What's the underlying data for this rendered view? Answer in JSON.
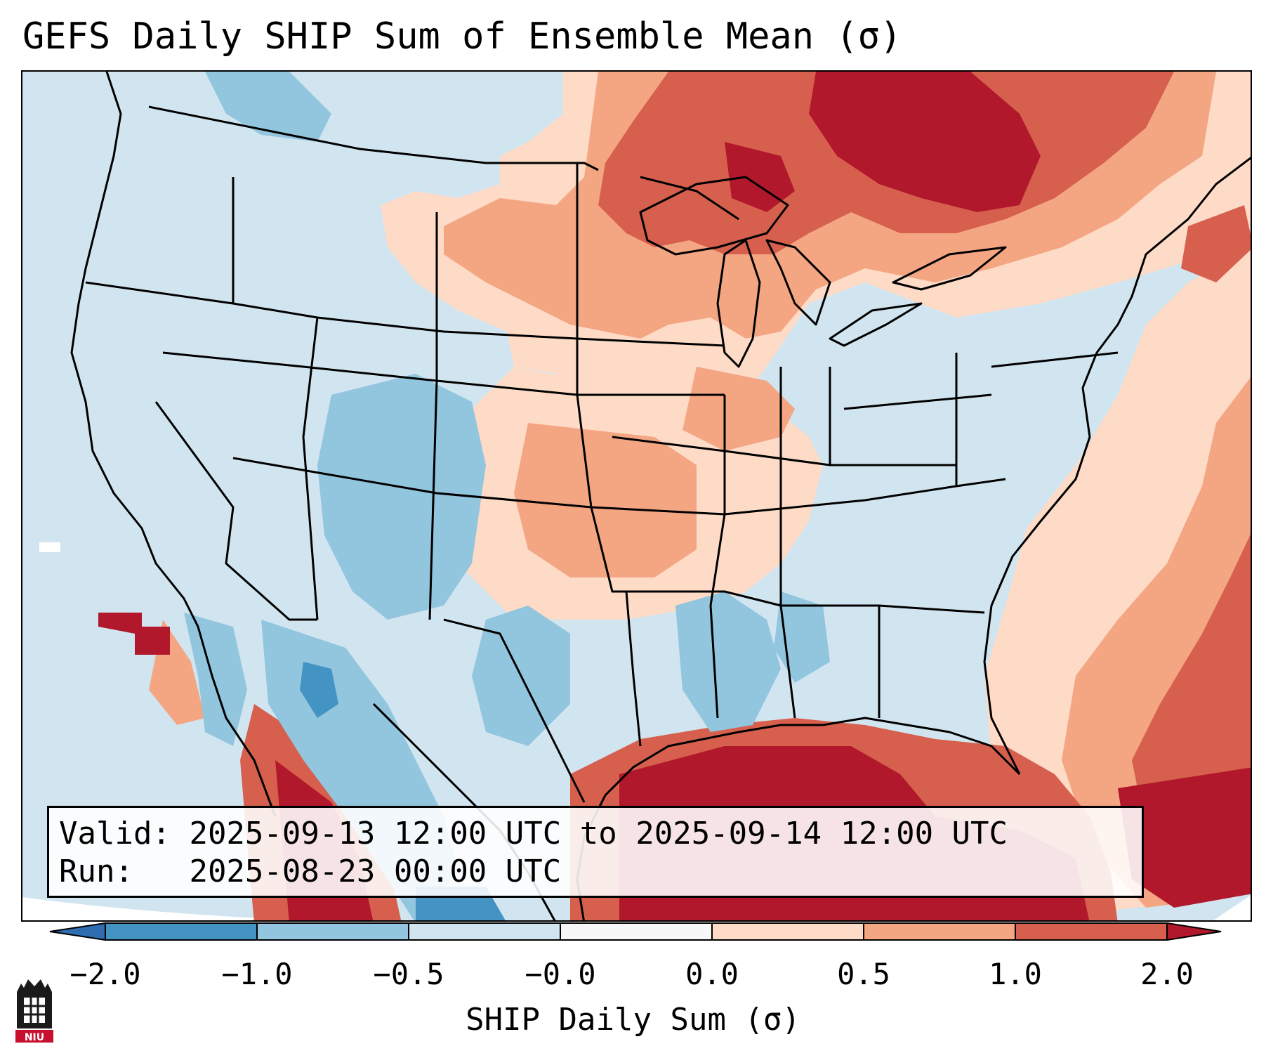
{
  "title": "GEFS Daily SHIP Sum of Ensemble Mean (σ)",
  "info_box": {
    "valid_label": "Valid:",
    "valid_value": "2025-09-13 12:00 UTC to 2025-09-14 12:00 UTC",
    "run_label": "Run:",
    "run_value": "2025-08-23 00:00 UTC"
  },
  "colorbar": {
    "label": "SHIP Daily Sum (σ)",
    "ticks": [
      "−2.0",
      "−1.0",
      "−0.5",
      "−0.0",
      "0.0",
      "0.5",
      "1.0",
      "2.0"
    ],
    "bins": [
      {
        "range": "< -2.0",
        "color": "#2f6db0"
      },
      {
        "range": "-2.0 to -1.0",
        "color": "#4393c3"
      },
      {
        "range": "-1.0 to -0.5",
        "color": "#92c5de"
      },
      {
        "range": "-0.5 to -0.0",
        "color": "#d1e5f0"
      },
      {
        "range": "-0.0 to 0.0",
        "color": "#f7f7f7"
      },
      {
        "range": "0.0 to 0.5",
        "color": "#fddbc7"
      },
      {
        "range": "0.5 to 1.0",
        "color": "#f4a582"
      },
      {
        "range": "1.0 to 2.0",
        "color": "#d6604d"
      },
      {
        "range": "> 2.0",
        "color": "#b2182b"
      }
    ]
  },
  "map": {
    "region": "Contiguous United States, southern Canada, northern Mexico, Gulf of Mexico",
    "projection": "Lambert Conformal",
    "field": "SHIP daily sum anomaly (sigma)"
  },
  "logo": {
    "text": "NIU"
  }
}
